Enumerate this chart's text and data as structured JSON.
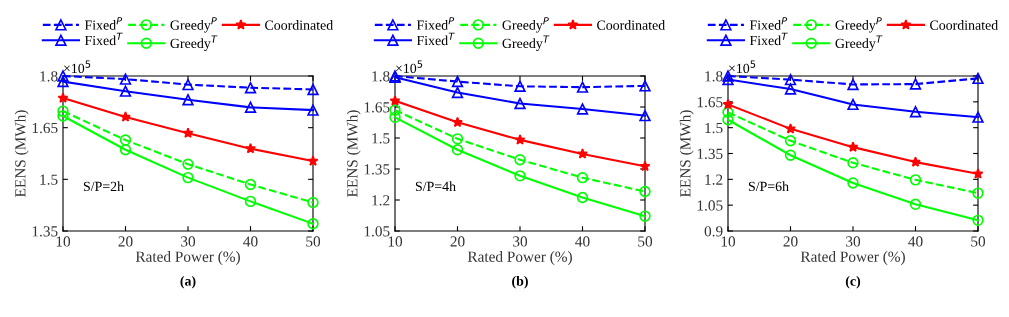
{
  "chart_data": [
    {
      "type": "line",
      "xlabel": "Rated Power (%)",
      "ylabel": "EENS (MWh)",
      "x": [
        10,
        20,
        30,
        40,
        50
      ],
      "xlim": [
        10,
        50
      ],
      "xticks": [
        10,
        20,
        30,
        40,
        50
      ],
      "ylim": [
        1.35,
        1.8
      ],
      "yticks": [
        1.35,
        1.5,
        1.65,
        1.8
      ],
      "legend": "top",
      "grid": false,
      "annotations": [
        "×10$^{5}$",
        "S/P=2h",
        "(a)"
      ],
      "series": [
        {
          "name": "Fixed$^{P}$",
          "color": "#0000ff",
          "marker": "triangle",
          "line_style": "dashed",
          "values": [
            1.8,
            1.791,
            1.775,
            1.766,
            1.761
          ]
        },
        {
          "name": "Fixed$^{T}$",
          "color": "#0000ff",
          "marker": "triangle",
          "line_style": "solid",
          "values": [
            1.784,
            1.756,
            1.731,
            1.709,
            1.701
          ]
        },
        {
          "name": "Greedy$^{P}$",
          "color": "#00ff00",
          "marker": "circle",
          "line_style": "dashed",
          "values": [
            1.698,
            1.614,
            1.544,
            1.485,
            1.433
          ]
        },
        {
          "name": "Greedy$^{T}$",
          "color": "#00ff00",
          "marker": "circle",
          "line_style": "solid",
          "values": [
            1.684,
            1.586,
            1.505,
            1.436,
            1.371
          ]
        },
        {
          "name": "Coordinated",
          "color": "#ff0000",
          "marker": "star",
          "line_style": "solid",
          "values": [
            1.736,
            1.681,
            1.634,
            1.589,
            1.553
          ]
        }
      ]
    },
    {
      "type": "line",
      "xlabel": "Rated Power (%)",
      "ylabel": "EENS (MWh)",
      "x": [
        10,
        20,
        30,
        40,
        50
      ],
      "xlim": [
        10,
        50
      ],
      "xticks": [
        10,
        20,
        30,
        40,
        50
      ],
      "ylim": [
        1.05,
        1.8
      ],
      "yticks": [
        1.05,
        1.2,
        1.35,
        1.5,
        1.65,
        1.8
      ],
      "legend": "top",
      "grid": false,
      "annotations": [
        "×10$^{5}$",
        "S/P=4h",
        "(b)"
      ],
      "series": [
        {
          "name": "Fixed$^{P}$",
          "color": "#0000ff",
          "marker": "triangle",
          "line_style": "dashed",
          "values": [
            1.8,
            1.773,
            1.75,
            1.746,
            1.752
          ]
        },
        {
          "name": "Fixed$^{T}$",
          "color": "#0000ff",
          "marker": "triangle",
          "line_style": "solid",
          "values": [
            1.794,
            1.72,
            1.667,
            1.64,
            1.608
          ]
        },
        {
          "name": "Greedy$^{P}$",
          "color": "#00ff00",
          "marker": "circle",
          "line_style": "dashed",
          "values": [
            1.635,
            1.496,
            1.395,
            1.308,
            1.241
          ]
        },
        {
          "name": "Greedy$^{T}$",
          "color": "#00ff00",
          "marker": "circle",
          "line_style": "solid",
          "values": [
            1.6,
            1.443,
            1.317,
            1.212,
            1.122
          ]
        },
        {
          "name": "Coordinated",
          "color": "#ff0000",
          "marker": "star",
          "line_style": "solid",
          "values": [
            1.68,
            1.576,
            1.491,
            1.423,
            1.363
          ]
        }
      ]
    },
    {
      "type": "line",
      "xlabel": "Rated Power (%)",
      "ylabel": "EENS (MWh)",
      "x": [
        10,
        20,
        30,
        40,
        50
      ],
      "xlim": [
        10,
        50
      ],
      "xticks": [
        10,
        20,
        30,
        40,
        50
      ],
      "ylim": [
        0.9,
        1.8
      ],
      "yticks": [
        0.9,
        1.05,
        1.2,
        1.35,
        1.5,
        1.65,
        1.8
      ],
      "legend": "top",
      "grid": false,
      "annotations": [
        "×10$^{5}$",
        "S/P=6h",
        "(c)"
      ],
      "series": [
        {
          "name": "Fixed$^{P}$",
          "color": "#0000ff",
          "marker": "triangle",
          "line_style": "dashed",
          "values": [
            1.8,
            1.779,
            1.751,
            1.753,
            1.786
          ]
        },
        {
          "name": "Fixed$^{T}$",
          "color": "#0000ff",
          "marker": "triangle",
          "line_style": "solid",
          "values": [
            1.78,
            1.724,
            1.635,
            1.592,
            1.561
          ]
        },
        {
          "name": "Greedy$^{P}$",
          "color": "#00ff00",
          "marker": "circle",
          "line_style": "dashed",
          "values": [
            1.589,
            1.424,
            1.296,
            1.197,
            1.12
          ]
        },
        {
          "name": "Greedy$^{T}$",
          "color": "#00ff00",
          "marker": "circle",
          "line_style": "solid",
          "values": [
            1.546,
            1.34,
            1.179,
            1.055,
            0.962
          ]
        },
        {
          "name": "Coordinated",
          "color": "#ff0000",
          "marker": "star",
          "line_style": "solid",
          "values": [
            1.635,
            1.493,
            1.387,
            1.3,
            1.232
          ]
        }
      ]
    }
  ]
}
